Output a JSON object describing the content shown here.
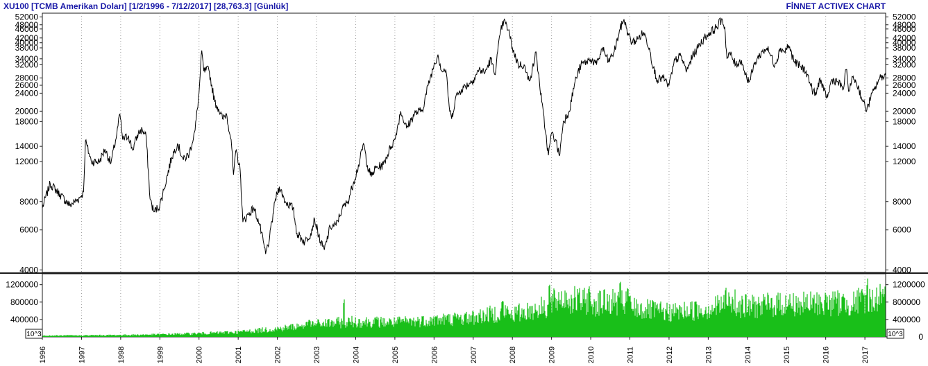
{
  "header": {
    "title": "XU100  [TCMB Amerikan Doları]  [1/2/1996 - 7/12/2017]  [28,763.3]  [Günlük]",
    "brand": "FİNNET ACTIVEX CHART"
  },
  "colors": {
    "frame": "#1a1a1a",
    "grid": "#9a9a9a",
    "price_line": "#000000",
    "volume_fill": "#19bf19",
    "header_text": "#1a1aa8"
  },
  "chart_data": [
    {
      "type": "line",
      "name": "price",
      "y_scale": "log",
      "ylim": [
        3900,
        54000
      ],
      "yticks": [
        4000,
        6000,
        8000,
        12000,
        14000,
        18000,
        20000,
        24000,
        26000,
        28000,
        32000,
        34000,
        38000,
        40000,
        42000,
        46000,
        48000,
        52000
      ],
      "xlim": [
        1996.0,
        2017.53
      ],
      "grid": "vertical dotted at year starts",
      "points": [
        [
          1996.0,
          7500
        ],
        [
          1996.2,
          9600
        ],
        [
          1996.45,
          8600
        ],
        [
          1996.7,
          7700
        ],
        [
          1996.95,
          8300
        ],
        [
          1997.05,
          8800
        ],
        [
          1997.1,
          14800
        ],
        [
          1997.25,
          12000
        ],
        [
          1997.45,
          12000
        ],
        [
          1997.6,
          13600
        ],
        [
          1997.75,
          11800
        ],
        [
          1997.9,
          15800
        ],
        [
          1997.98,
          19500
        ],
        [
          1998.05,
          15000
        ],
        [
          1998.2,
          15600
        ],
        [
          1998.3,
          13500
        ],
        [
          1998.45,
          16000
        ],
        [
          1998.55,
          16600
        ],
        [
          1998.65,
          15500
        ],
        [
          1998.75,
          8200
        ],
        [
          1998.85,
          7200
        ],
        [
          1999.0,
          7700
        ],
        [
          1999.1,
          9000
        ],
        [
          1999.3,
          12500
        ],
        [
          1999.45,
          14400
        ],
        [
          1999.6,
          12200
        ],
        [
          1999.75,
          13000
        ],
        [
          1999.9,
          16500
        ],
        [
          2000.0,
          24000
        ],
        [
          2000.07,
          37000
        ],
        [
          2000.12,
          30000
        ],
        [
          2000.25,
          30500
        ],
        [
          2000.4,
          22000
        ],
        [
          2000.5,
          20500
        ],
        [
          2000.6,
          18500
        ],
        [
          2000.7,
          19500
        ],
        [
          2000.82,
          15000
        ],
        [
          2000.88,
          10500
        ],
        [
          2000.95,
          13500
        ],
        [
          2001.05,
          11000
        ],
        [
          2001.12,
          6500
        ],
        [
          2001.25,
          7000
        ],
        [
          2001.4,
          7500
        ],
        [
          2001.55,
          6300
        ],
        [
          2001.7,
          4700
        ],
        [
          2001.8,
          5500
        ],
        [
          2001.95,
          8200
        ],
        [
          2002.05,
          9300
        ],
        [
          2002.2,
          8000
        ],
        [
          2002.4,
          7500
        ],
        [
          2002.5,
          5800
        ],
        [
          2002.7,
          5300
        ],
        [
          2002.85,
          5800
        ],
        [
          2002.95,
          6700
        ],
        [
          2003.1,
          5300
        ],
        [
          2003.2,
          4900
        ],
        [
          2003.35,
          6200
        ],
        [
          2003.5,
          6300
        ],
        [
          2003.65,
          7400
        ],
        [
          2003.8,
          8000
        ],
        [
          2003.95,
          9800
        ],
        [
          2004.1,
          12000
        ],
        [
          2004.2,
          14400
        ],
        [
          2004.3,
          11500
        ],
        [
          2004.4,
          10300
        ],
        [
          2004.5,
          11200
        ],
        [
          2004.7,
          11600
        ],
        [
          2004.9,
          14000
        ],
        [
          2005.0,
          15000
        ],
        [
          2005.15,
          20000
        ],
        [
          2005.3,
          16800
        ],
        [
          2005.5,
          19500
        ],
        [
          2005.7,
          20200
        ],
        [
          2005.85,
          26000
        ],
        [
          2006.0,
          32000
        ],
        [
          2006.1,
          35500
        ],
        [
          2006.2,
          30000
        ],
        [
          2006.3,
          30500
        ],
        [
          2006.4,
          20000
        ],
        [
          2006.45,
          18500
        ],
        [
          2006.55,
          23000
        ],
        [
          2006.7,
          25000
        ],
        [
          2006.9,
          26500
        ],
        [
          2007.0,
          27500
        ],
        [
          2007.15,
          30500
        ],
        [
          2007.3,
          29500
        ],
        [
          2007.45,
          34000
        ],
        [
          2007.55,
          29000
        ],
        [
          2007.7,
          45000
        ],
        [
          2007.78,
          50000
        ],
        [
          2007.9,
          45500
        ],
        [
          2008.0,
          38000
        ],
        [
          2008.15,
          32000
        ],
        [
          2008.3,
          32000
        ],
        [
          2008.4,
          27500
        ],
        [
          2008.5,
          29500
        ],
        [
          2008.6,
          36500
        ],
        [
          2008.75,
          22000
        ],
        [
          2008.85,
          16000
        ],
        [
          2008.92,
          12800
        ],
        [
          2009.0,
          16000
        ],
        [
          2009.1,
          15000
        ],
        [
          2009.2,
          12700
        ],
        [
          2009.3,
          18000
        ],
        [
          2009.45,
          20000
        ],
        [
          2009.6,
          27000
        ],
        [
          2009.75,
          32000
        ],
        [
          2009.9,
          33000
        ],
        [
          2010.0,
          34000
        ],
        [
          2010.15,
          32000
        ],
        [
          2010.3,
          38000
        ],
        [
          2010.45,
          33000
        ],
        [
          2010.6,
          36500
        ],
        [
          2010.75,
          46000
        ],
        [
          2010.85,
          50800
        ],
        [
          2010.95,
          44000
        ],
        [
          2011.05,
          40000
        ],
        [
          2011.2,
          41500
        ],
        [
          2011.35,
          44500
        ],
        [
          2011.5,
          38000
        ],
        [
          2011.6,
          31000
        ],
        [
          2011.7,
          27500
        ],
        [
          2011.85,
          28000
        ],
        [
          2011.95,
          26500
        ],
        [
          2012.0,
          26000
        ],
        [
          2012.15,
          33500
        ],
        [
          2012.3,
          35000
        ],
        [
          2012.45,
          30000
        ],
        [
          2012.6,
          35000
        ],
        [
          2012.75,
          38500
        ],
        [
          2012.9,
          42000
        ],
        [
          2013.05,
          44500
        ],
        [
          2013.2,
          46500
        ],
        [
          2013.35,
          51000
        ],
        [
          2013.42,
          47000
        ],
        [
          2013.48,
          34000
        ],
        [
          2013.55,
          36000
        ],
        [
          2013.7,
          32000
        ],
        [
          2013.85,
          33500
        ],
        [
          2013.95,
          29000
        ],
        [
          2014.05,
          27000
        ],
        [
          2014.2,
          33000
        ],
        [
          2014.35,
          36000
        ],
        [
          2014.5,
          38000
        ],
        [
          2014.6,
          35000
        ],
        [
          2014.7,
          32000
        ],
        [
          2014.85,
          38000
        ],
        [
          2014.95,
          36500
        ],
        [
          2015.05,
          39000
        ],
        [
          2015.2,
          33000
        ],
        [
          2015.35,
          31500
        ],
        [
          2015.5,
          30000
        ],
        [
          2015.65,
          25000
        ],
        [
          2015.75,
          23500
        ],
        [
          2015.85,
          28000
        ],
        [
          2015.95,
          24500
        ],
        [
          2016.05,
          23000
        ],
        [
          2016.15,
          27500
        ],
        [
          2016.3,
          27000
        ],
        [
          2016.45,
          25000
        ],
        [
          2016.52,
          30500
        ],
        [
          2016.6,
          24500
        ],
        [
          2016.7,
          28500
        ],
        [
          2016.85,
          25000
        ],
        [
          2016.95,
          22000
        ],
        [
          2017.05,
          20200
        ],
        [
          2017.15,
          23000
        ],
        [
          2017.25,
          25000
        ],
        [
          2017.35,
          27500
        ],
        [
          2017.45,
          28500
        ],
        [
          2017.53,
          28763.3
        ]
      ]
    },
    {
      "type": "area",
      "name": "volume",
      "unit_label": "10^3",
      "ylim": [
        0,
        1450000
      ],
      "yticks": [
        0,
        400000,
        800000,
        1200000
      ],
      "xlim": [
        1996.0,
        2017.53
      ],
      "points": [
        [
          1996.0,
          30000
        ],
        [
          1997.0,
          35000
        ],
        [
          1998.0,
          45000
        ],
        [
          1999.0,
          60000
        ],
        [
          2000.0,
          85000
        ],
        [
          2001.0,
          120000
        ],
        [
          2002.0,
          200000
        ],
        [
          2002.8,
          300000
        ],
        [
          2003.0,
          320000
        ],
        [
          2004.0,
          380000
        ],
        [
          2005.0,
          360000
        ],
        [
          2006.0,
          420000
        ],
        [
          2007.0,
          480000
        ],
        [
          2007.8,
          620000
        ],
        [
          2008.0,
          560000
        ],
        [
          2008.9,
          750000
        ],
        [
          2009.2,
          950000
        ],
        [
          2009.6,
          900000
        ],
        [
          2010.0,
          850000
        ],
        [
          2010.8,
          850000
        ],
        [
          2011.2,
          700000
        ],
        [
          2012.0,
          600000
        ],
        [
          2013.0,
          700000
        ],
        [
          2013.5,
          830000
        ],
        [
          2014.0,
          750000
        ],
        [
          2015.0,
          820000
        ],
        [
          2015.5,
          800000
        ],
        [
          2016.0,
          850000
        ],
        [
          2016.7,
          830000
        ],
        [
          2017.0,
          920000
        ],
        [
          2017.53,
          950000
        ]
      ],
      "peaks": [
        [
          2002.8,
          650000
        ],
        [
          2003.7,
          900000
        ],
        [
          2007.75,
          870000
        ],
        [
          2008.95,
          1270000
        ],
        [
          2009.35,
          1300000
        ],
        [
          2009.95,
          1250000
        ],
        [
          2010.75,
          1300000
        ],
        [
          2010.95,
          1220000
        ],
        [
          2013.45,
          1230000
        ],
        [
          2013.7,
          1200000
        ],
        [
          2017.05,
          1400000
        ],
        [
          2017.4,
          1230000
        ]
      ]
    }
  ],
  "x_axis": {
    "year_labels": [
      "1996",
      "1997",
      "1998",
      "1999",
      "2000",
      "2001",
      "2002",
      "2003",
      "2004",
      "2005",
      "2006",
      "2007",
      "2008",
      "2009",
      "2010",
      "2011",
      "2012",
      "2013",
      "2014",
      "2015",
      "2016",
      "2017"
    ]
  }
}
